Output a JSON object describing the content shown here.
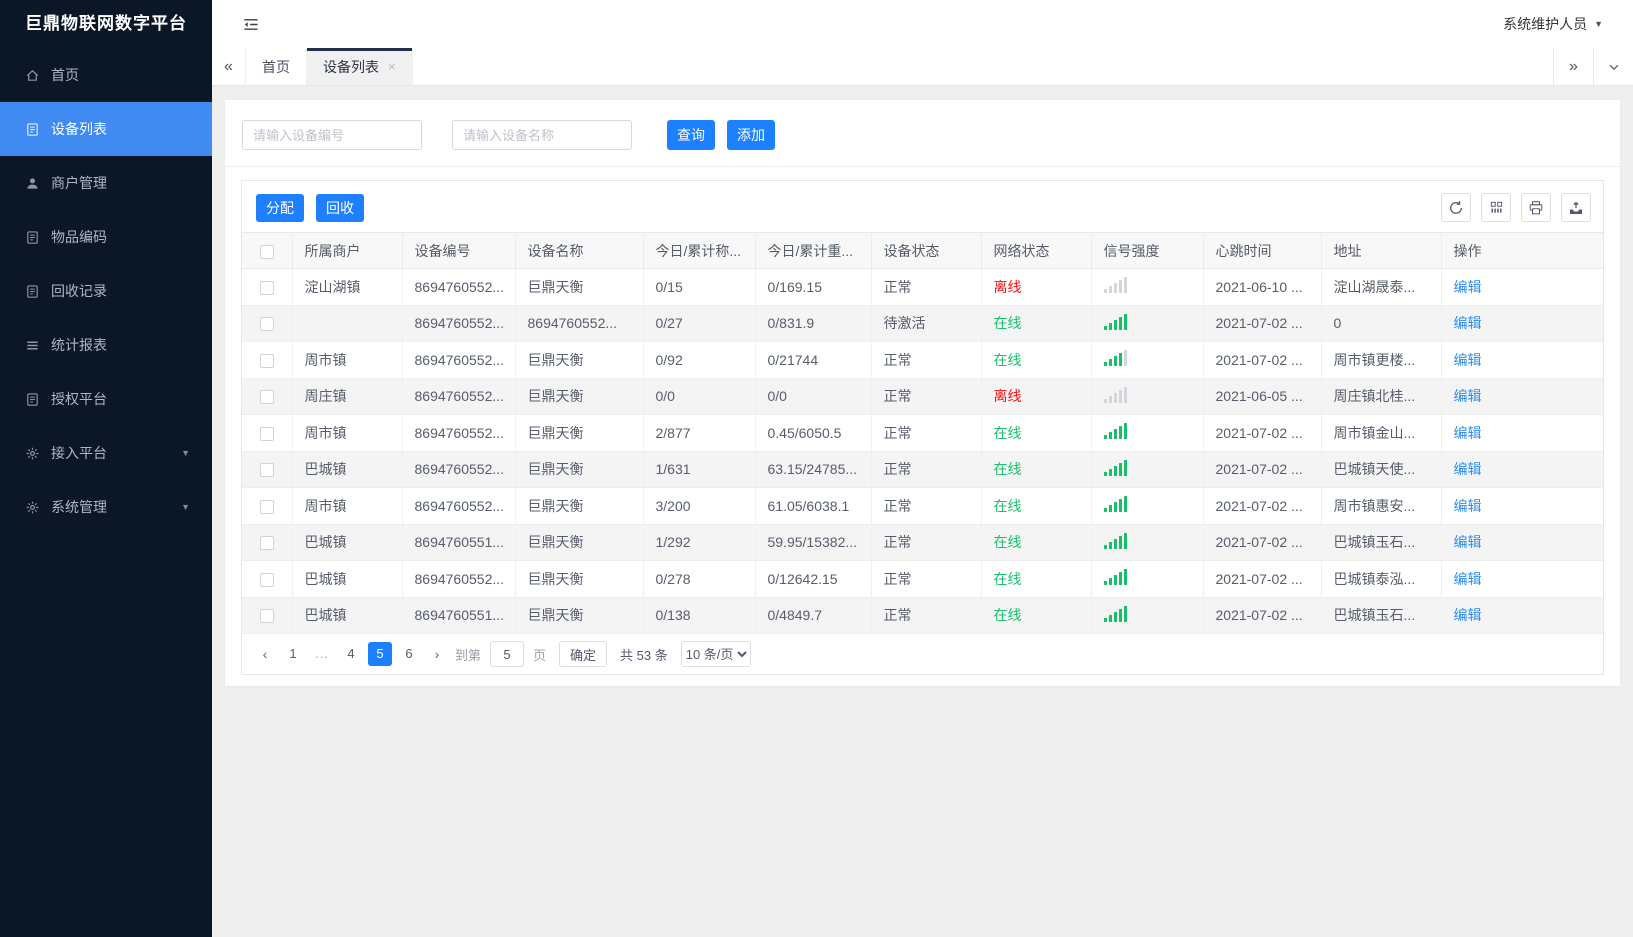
{
  "app": {
    "title": "巨鼎物联网数字平台",
    "user_label": "系统维护人员"
  },
  "sidebar": {
    "items": [
      {
        "icon": "home-icon",
        "label": "首页",
        "active": false,
        "has_children": false
      },
      {
        "icon": "device-list-icon",
        "label": "设备列表",
        "active": true,
        "has_children": false
      },
      {
        "icon": "merchant-icon",
        "label": "商户管理",
        "active": false,
        "has_children": false
      },
      {
        "icon": "item-code-icon",
        "label": "物品编码",
        "active": false,
        "has_children": false
      },
      {
        "icon": "recycle-record-icon",
        "label": "回收记录",
        "active": false,
        "has_children": false
      },
      {
        "icon": "report-icon",
        "label": "统计报表",
        "active": false,
        "has_children": false
      },
      {
        "icon": "auth-platform-icon",
        "label": "授权平台",
        "active": false,
        "has_children": false
      },
      {
        "icon": "access-platform-icon",
        "label": "接入平台",
        "active": false,
        "has_children": true
      },
      {
        "icon": "system-manage-icon",
        "label": "系统管理",
        "active": false,
        "has_children": true
      }
    ]
  },
  "tabbar": {
    "collapse_left": "«",
    "collapse_right": "»",
    "tabs": [
      {
        "label": "首页",
        "active": false,
        "closable": false
      },
      {
        "label": "设备列表",
        "active": true,
        "closable": true
      }
    ]
  },
  "search": {
    "device_no_placeholder": "请输入设备编号",
    "device_name_placeholder": "请输入设备名称",
    "query_label": "查询",
    "add_label": "添加"
  },
  "toolbar": {
    "assign_label": "分配",
    "recycle_label": "回收",
    "icons": [
      "refresh-icon",
      "columns-icon",
      "print-icon",
      "export-icon"
    ]
  },
  "table": {
    "columns": [
      "所属商户",
      "设备编号",
      "设备名称",
      "今日/累计称...",
      "今日/累计重...",
      "设备状态",
      "网络状态",
      "信号强度",
      "心跳时间",
      "地址",
      "操作"
    ],
    "action_label": "编辑",
    "rows": [
      {
        "merchant": "淀山湖镇",
        "device_no": "8694760552...",
        "device_name": "巨鼎天衡",
        "today_count": "0/15",
        "today_weight": "0/169.15",
        "device_status": "正常",
        "network_status": "离线",
        "online": false,
        "signal": 0,
        "heartbeat": "2021-06-10 ...",
        "address": "淀山湖晟泰..."
      },
      {
        "merchant": "",
        "device_no": "8694760552...",
        "device_name": "8694760552...",
        "today_count": "0/27",
        "today_weight": "0/831.9",
        "device_status": "待激活",
        "network_status": "在线",
        "online": true,
        "signal": 5,
        "heartbeat": "2021-07-02 ...",
        "address": "0"
      },
      {
        "merchant": "周市镇",
        "device_no": "8694760552...",
        "device_name": "巨鼎天衡",
        "today_count": "0/92",
        "today_weight": "0/21744",
        "device_status": "正常",
        "network_status": "在线",
        "online": true,
        "signal": 4,
        "heartbeat": "2021-07-02 ...",
        "address": "周市镇更楼..."
      },
      {
        "merchant": "周庄镇",
        "device_no": "8694760552...",
        "device_name": "巨鼎天衡",
        "today_count": "0/0",
        "today_weight": "0/0",
        "device_status": "正常",
        "network_status": "离线",
        "online": false,
        "signal": 0,
        "heartbeat": "2021-06-05 ...",
        "address": "周庄镇北桂..."
      },
      {
        "merchant": "周市镇",
        "device_no": "8694760552...",
        "device_name": "巨鼎天衡",
        "today_count": "2/877",
        "today_weight": "0.45/6050.5",
        "device_status": "正常",
        "network_status": "在线",
        "online": true,
        "signal": 5,
        "heartbeat": "2021-07-02 ...",
        "address": "周市镇金山..."
      },
      {
        "merchant": "巴城镇",
        "device_no": "8694760552...",
        "device_name": "巨鼎天衡",
        "today_count": "1/631",
        "today_weight": "63.15/24785...",
        "device_status": "正常",
        "network_status": "在线",
        "online": true,
        "signal": 5,
        "heartbeat": "2021-07-02 ...",
        "address": "巴城镇天使..."
      },
      {
        "merchant": "周市镇",
        "device_no": "8694760552...",
        "device_name": "巨鼎天衡",
        "today_count": "3/200",
        "today_weight": "61.05/6038.1",
        "device_status": "正常",
        "network_status": "在线",
        "online": true,
        "signal": 5,
        "heartbeat": "2021-07-02 ...",
        "address": "周市镇惠安..."
      },
      {
        "merchant": "巴城镇",
        "device_no": "8694760551...",
        "device_name": "巨鼎天衡",
        "today_count": "1/292",
        "today_weight": "59.95/15382...",
        "device_status": "正常",
        "network_status": "在线",
        "online": true,
        "signal": 5,
        "heartbeat": "2021-07-02 ...",
        "address": "巴城镇玉石..."
      },
      {
        "merchant": "巴城镇",
        "device_no": "8694760552...",
        "device_name": "巨鼎天衡",
        "today_count": "0/278",
        "today_weight": "0/12642.15",
        "device_status": "正常",
        "network_status": "在线",
        "online": true,
        "signal": 5,
        "heartbeat": "2021-07-02 ...",
        "address": "巴城镇泰泓..."
      },
      {
        "merchant": "巴城镇",
        "device_no": "8694760551...",
        "device_name": "巨鼎天衡",
        "today_count": "0/138",
        "today_weight": "0/4849.7",
        "device_status": "正常",
        "network_status": "在线",
        "online": true,
        "signal": 5,
        "heartbeat": "2021-07-02 ...",
        "address": "巴城镇玉石..."
      }
    ]
  },
  "pagination": {
    "pages": [
      "1",
      "...",
      "4",
      "5",
      "6"
    ],
    "active_page": "5",
    "jump_label": "到第",
    "jump_value": "5",
    "jump_unit": "页",
    "confirm_label": "确定",
    "total_label": "共 53 条",
    "page_size": "10 条/页"
  },
  "colors": {
    "accent_blue": "#1e80ff",
    "sidebar_bg": "#0b1626",
    "active_menu_blue": "#3f8bf2",
    "online_green": "#19be6b",
    "offline_red": "#f50f0f",
    "edit_link_blue": "#2d8cf0"
  }
}
